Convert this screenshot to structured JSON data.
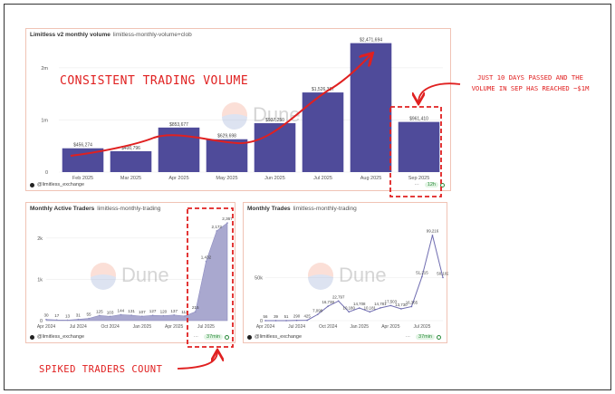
{
  "panels": {
    "volume": {
      "title": "Limitless v2 monthly volume",
      "subtitle": "limitless-monthly-volume+clob",
      "footer": "@limitless_exchange",
      "refresh": "12h"
    },
    "traders": {
      "title": "Monthly Active Traders",
      "subtitle": "limitless-monthly-trading",
      "footer": "@limitless_exchange",
      "refresh": "37min"
    },
    "trades": {
      "title": "Monthly Trades",
      "subtitle": "limitless-monthly-trading",
      "footer": "@limitless_exchange",
      "refresh": "37min"
    }
  },
  "watermark": "Dune",
  "menu_dots": "···",
  "annotations": {
    "title": "CONSISTENT TRADING VOLUME",
    "sep_line1": "JUST 10 DAYS PASSED AND THE",
    "sep_line2": "VOLUME IN SEP HAS REACHED ~$1M",
    "spike": "SPIKED TRADERS COUNT"
  },
  "colors": {
    "bar": "#4f4b9a",
    "area": "#a9a8cf",
    "line": "#6f6cb0",
    "annotation": "#e02020"
  },
  "chart_data": [
    {
      "type": "bar",
      "title": "Limitless v2 monthly volume",
      "categories": [
        "Feb 2025",
        "Mar 2025",
        "Apr 2025",
        "May 2025",
        "Jun 2025",
        "Jul 2025",
        "Aug 2025",
        "Sep 2025"
      ],
      "values": [
        456274,
        400796,
        853677,
        629698,
        937250,
        1526387,
        2471694,
        961410
      ],
      "labels": [
        "$456,274",
        "$400,796",
        "$853,677",
        "$629,698",
        "$937,250",
        "$1,526,387",
        "$2,471,694",
        "$961,410"
      ],
      "yticks": [
        0,
        1000000,
        2000000
      ],
      "ytick_labels": [
        "0",
        "1m",
        "2m"
      ],
      "ylim": [
        0,
        2500000
      ],
      "grid": true
    },
    {
      "type": "area",
      "title": "Monthly Active Traders",
      "x_ticks": [
        "Apr 2024",
        "Jul 2024",
        "Oct 2024",
        "Jan 2025",
        "Apr 2025",
        "Jul 2025"
      ],
      "values": [
        30,
        17,
        13,
        31,
        55,
        125,
        103,
        144,
        131,
        107,
        127,
        120,
        137,
        112,
        215,
        1432,
        2172,
        2367
      ],
      "labels": [
        "30",
        "17",
        "13",
        "31",
        "55",
        "125",
        "103",
        "144",
        "131",
        "107",
        "127",
        "120",
        "137",
        "112",
        "215",
        "1,432",
        "2,172",
        "2,367"
      ],
      "yticks": [
        0,
        1000,
        2000
      ],
      "ytick_labels": [
        "0",
        "1k",
        "2k"
      ],
      "ylim": [
        0,
        2500
      ],
      "grid": true
    },
    {
      "type": "line",
      "title": "Monthly Trades",
      "x_ticks": [
        "Apr 2024",
        "Jul 2024",
        "Oct 2024",
        "Jan 2025",
        "Apr 2025",
        "Jul 2025"
      ],
      "values": [
        56,
        39,
        51,
        290,
        425,
        7098,
        16738,
        22797,
        10180,
        14708,
        10181,
        14781,
        17503,
        13730,
        16365,
        51215,
        99216,
        50102
      ],
      "labels": [
        "56",
        "39",
        "51",
        "290",
        "425",
        "7,098",
        "16,738",
        "22,797",
        "10,180",
        "14,708",
        "10,181",
        "14,781",
        "17,503",
        "13,730",
        "16,365",
        "51,215",
        "99,216",
        "50,102"
      ],
      "yticks": [
        0,
        50000
      ],
      "ytick_labels": [
        "0",
        "50k"
      ],
      "ylim": [
        0,
        120000
      ],
      "grid": true
    }
  ]
}
